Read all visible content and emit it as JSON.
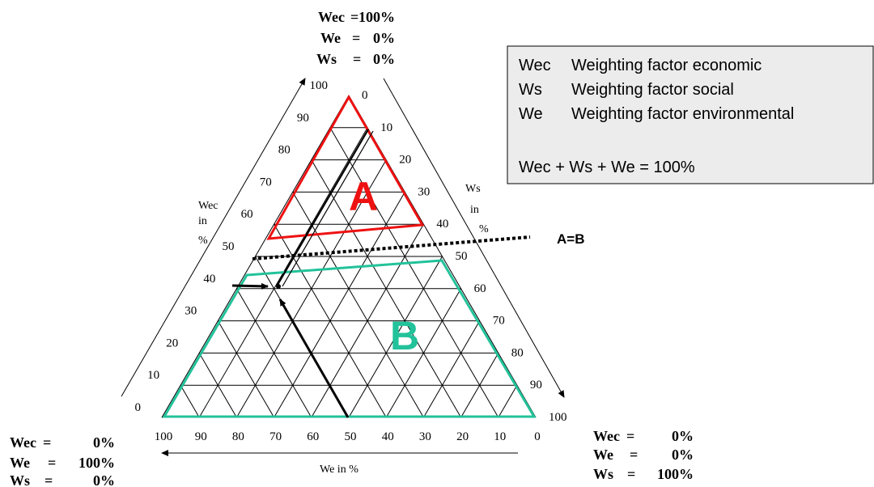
{
  "corners": {
    "top": [
      {
        "label": "Wec",
        "eq": "=",
        "value": "100%"
      },
      {
        "label": "We",
        "eq": "=",
        "value": "0%"
      },
      {
        "label": "Ws",
        "eq": "=",
        "value": "0%"
      }
    ],
    "bottom_left": [
      {
        "label": "Wec",
        "eq": "=",
        "value": "0%"
      },
      {
        "label": "We",
        "eq": "=",
        "value": "100%"
      },
      {
        "label": "Ws",
        "eq": "=",
        "value": "0%"
      }
    ],
    "bottom_right": [
      {
        "label": "Wec",
        "eq": "=",
        "value": "0%"
      },
      {
        "label": "We",
        "eq": "=",
        "value": "0%"
      },
      {
        "label": "Ws",
        "eq": "=",
        "value": "100%"
      }
    ]
  },
  "legend": {
    "rows": [
      {
        "abbr": "Wec",
        "desc": "Weighting factor economic"
      },
      {
        "abbr": "Ws",
        "desc": "Weighting factor social"
      },
      {
        "abbr": "We",
        "desc": "Weighting factor environmental"
      }
    ],
    "formula": "Wec + Ws + We  =  100%"
  },
  "axes": {
    "wec": {
      "label_lines": [
        "Wec",
        "in",
        "%"
      ],
      "ticks": [
        "100",
        "90",
        "80",
        "70",
        "60",
        "50",
        "40",
        "30",
        "20",
        "10",
        "0"
      ]
    },
    "ws": {
      "label_lines": [
        "Ws",
        "in",
        "%"
      ],
      "ticks": [
        "0",
        "10",
        "20",
        "30",
        "40",
        "50",
        "60",
        "70",
        "80",
        "90",
        "100"
      ]
    },
    "we": {
      "label": "We in %",
      "ticks": [
        "100",
        "90",
        "80",
        "70",
        "60",
        "50",
        "40",
        "30",
        "20",
        "10",
        "0"
      ]
    }
  },
  "regions": {
    "a": {
      "label": "A",
      "color": "#ee1111"
    },
    "b": {
      "label": "B",
      "color": "#22c29a"
    }
  },
  "boundary_label": "A=B"
}
